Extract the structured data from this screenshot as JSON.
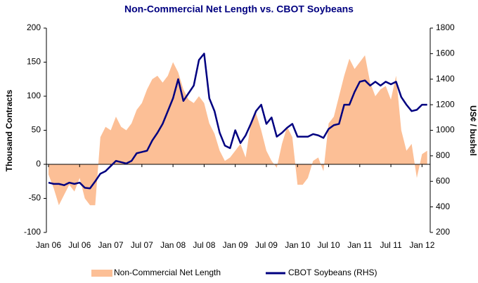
{
  "chart_data": {
    "type": "area-line",
    "title": "Non-Commercial Net Length vs. CBOT Soybeans",
    "ylabel": "Thousand Contracts",
    "y2label": "US¢ / bushel",
    "categories": [
      "Jan 06",
      null,
      null,
      null,
      null,
      null,
      "Jul 06",
      null,
      null,
      null,
      null,
      null,
      "Jan 07",
      null,
      null,
      null,
      null,
      null,
      "Jul 07",
      null,
      null,
      null,
      null,
      null,
      "Jan 08",
      null,
      null,
      null,
      null,
      null,
      "Jul 08",
      null,
      null,
      null,
      null,
      null,
      "Jan 09",
      null,
      null,
      null,
      null,
      null,
      "Jul 09",
      null,
      null,
      null,
      null,
      null,
      "Jan 10",
      null,
      null,
      null,
      null,
      null,
      "Jul 10",
      null,
      null,
      null,
      null,
      null,
      "Jan 11",
      null,
      null,
      null,
      null,
      null,
      "Jul 11",
      null,
      null,
      null,
      null,
      null,
      "Jan 12",
      null
    ],
    "series": [
      {
        "name": "Non-Commercial Net Length",
        "type": "area",
        "color": "#fcbf96",
        "values": [
          -15,
          -35,
          -60,
          -45,
          -30,
          -40,
          -20,
          -50,
          -60,
          -60,
          40,
          55,
          50,
          70,
          55,
          50,
          60,
          80,
          90,
          110,
          125,
          130,
          120,
          130,
          150,
          135,
          110,
          95,
          90,
          100,
          90,
          60,
          45,
          20,
          5,
          10,
          20,
          30,
          10,
          60,
          75,
          50,
          20,
          5,
          -5,
          30,
          55,
          40,
          -30,
          -30,
          -20,
          5,
          10,
          -10,
          60,
          70,
          100,
          130,
          155,
          140,
          150,
          160,
          120,
          100,
          110,
          115,
          95,
          130,
          50,
          20,
          30,
          -20,
          15,
          20
        ]
      },
      {
        "name": "CBOT Soybeans (RHS)",
        "type": "line",
        "axis": "y2",
        "color": "#000080",
        "values": [
          590,
          580,
          580,
          570,
          590,
          580,
          590,
          550,
          545,
          600,
          660,
          680,
          720,
          760,
          750,
          740,
          760,
          820,
          830,
          840,
          920,
          980,
          1050,
          1150,
          1250,
          1400,
          1230,
          1290,
          1350,
          1550,
          1600,
          1250,
          1150,
          980,
          880,
          860,
          1000,
          900,
          960,
          1050,
          1150,
          1200,
          1050,
          1100,
          950,
          980,
          1020,
          1050,
          950,
          950,
          950,
          970,
          960,
          940,
          1010,
          1040,
          1050,
          1200,
          1200,
          1300,
          1380,
          1390,
          1350,
          1380,
          1350,
          1380,
          1360,
          1380,
          1260,
          1200,
          1150,
          1160,
          1200,
          1200
        ]
      }
    ],
    "ylim": [
      -100,
      200
    ],
    "yticks": [
      -100,
      -50,
      0,
      50,
      100,
      150,
      200
    ],
    "y2lim": [
      200,
      1800
    ],
    "y2ticks": [
      200,
      400,
      600,
      800,
      1000,
      1200,
      1400,
      1600,
      1800
    ],
    "legend": "bottom"
  }
}
